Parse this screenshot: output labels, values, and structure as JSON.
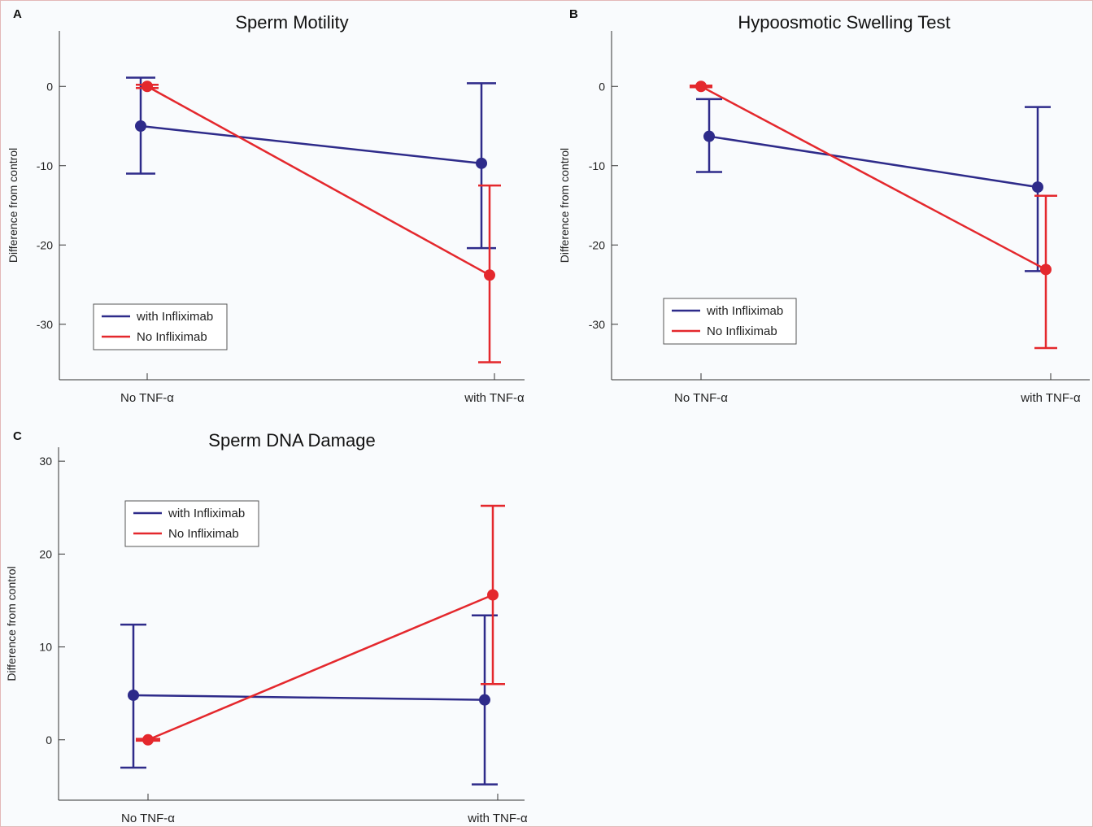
{
  "chart_data": [
    {
      "id": "A",
      "panel_label": "A",
      "type": "line",
      "title": "Sperm Motility",
      "ylabel": "Difference from control",
      "categories": [
        "No TNF-α",
        "with TNF-α"
      ],
      "ylim": [
        -37,
        7
      ],
      "yticks": [
        0,
        -10,
        -20,
        -30
      ],
      "grid": false,
      "legend": "bottom-left",
      "series": [
        {
          "name": "with Infliximab",
          "color": "#2e2b8a",
          "values": [
            -5,
            -9.7
          ],
          "err_low": [
            -11,
            -20.4
          ],
          "err_high": [
            1.1,
            0.4
          ]
        },
        {
          "name": "No Infliximab",
          "color": "#e4282d",
          "values": [
            0,
            -23.8
          ],
          "err_low": [
            -0.2,
            -34.8
          ],
          "err_high": [
            0.2,
            -12.5
          ]
        }
      ]
    },
    {
      "id": "B",
      "panel_label": "B",
      "type": "line",
      "title": "Hypoosmotic Swelling Test",
      "ylabel": "Difference from control",
      "categories": [
        "No TNF-α",
        "with TNF-α"
      ],
      "ylim": [
        -37,
        7
      ],
      "yticks": [
        0,
        -10,
        -20,
        -30
      ],
      "grid": false,
      "legend": "bottom-left",
      "series": [
        {
          "name": "with Infliximab",
          "color": "#2e2b8a",
          "values": [
            -6.3,
            -12.7
          ],
          "err_low": [
            -10.8,
            -23.3
          ],
          "err_high": [
            -1.6,
            -2.6
          ]
        },
        {
          "name": "No Infliximab",
          "color": "#e4282d",
          "values": [
            0,
            -23.1
          ],
          "err_low": [
            -0.1,
            -33
          ],
          "err_high": [
            0.1,
            -13.8
          ]
        }
      ]
    },
    {
      "id": "C",
      "panel_label": "C",
      "type": "line",
      "title": "Sperm DNA Damage",
      "ylabel": "Difference from control",
      "categories": [
        "No TNF-α",
        "with TNF-α"
      ],
      "ylim": [
        -6.5,
        31.5
      ],
      "yticks": [
        30,
        20,
        10,
        0
      ],
      "grid": false,
      "legend": "top-left",
      "series": [
        {
          "name": "with Infliximab",
          "color": "#2e2b8a",
          "values": [
            4.8,
            4.3
          ],
          "err_low": [
            -3,
            -4.8
          ],
          "err_high": [
            12.4,
            13.4
          ]
        },
        {
          "name": "No Infliximab",
          "color": "#e4282d",
          "values": [
            0,
            15.6
          ],
          "err_low": [
            -0.1,
            6
          ],
          "err_high": [
            0.1,
            25.2
          ]
        }
      ]
    }
  ]
}
